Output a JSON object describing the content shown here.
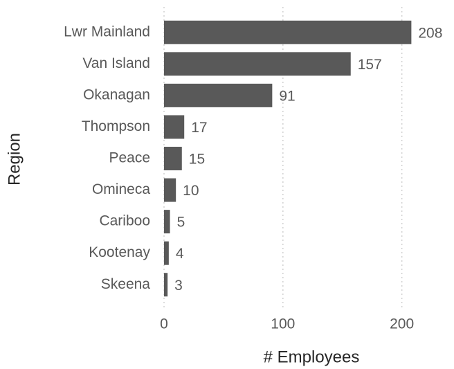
{
  "chart_data": {
    "type": "bar",
    "orientation": "horizontal",
    "x_label": "# Employees",
    "y_label": "Region",
    "categories": [
      "Lwr Mainland",
      "Van Island",
      "Okanagan",
      "Thompson",
      "Peace",
      "Omineca",
      "Cariboo",
      "Kootenay",
      "Skeena"
    ],
    "values": [
      208,
      157,
      91,
      17,
      15,
      10,
      5,
      4,
      3
    ],
    "color": "#595959",
    "xlim": [
      0,
      220
    ],
    "xticks": [
      0,
      100,
      200
    ],
    "grid": true
  }
}
